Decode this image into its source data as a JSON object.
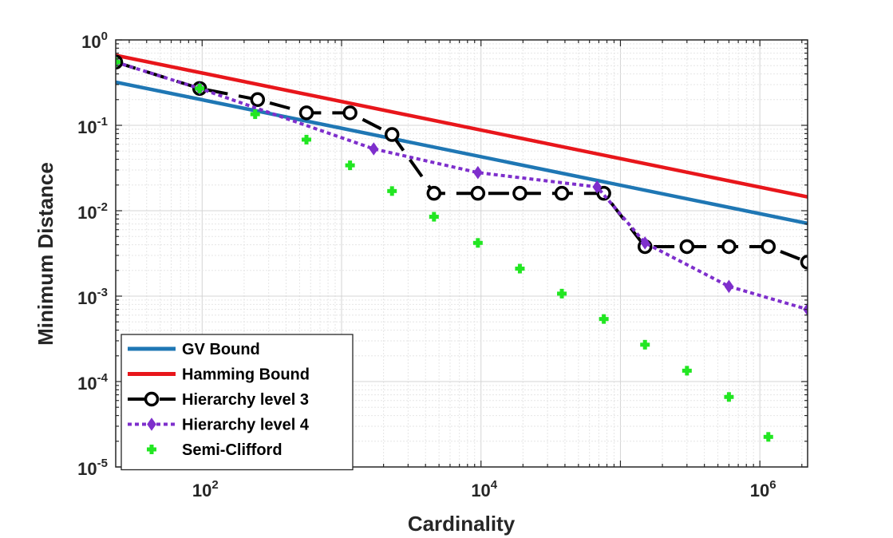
{
  "chart_data": {
    "type": "line",
    "title": "",
    "xlabel": "Cardinality",
    "ylabel": "Minimum Distance",
    "xscale": "log",
    "yscale": "log",
    "xlim": [
      24,
      2200000
    ],
    "ylim": [
      1e-05,
      1
    ],
    "grid": true,
    "legend_position": "bottom-left",
    "x_ticks": [
      {
        "value": 100,
        "base": "10",
        "exp": "2"
      },
      {
        "value": 10000,
        "base": "10",
        "exp": "4"
      },
      {
        "value": 1000000,
        "base": "10",
        "exp": "6"
      }
    ],
    "y_ticks": [
      {
        "value": 1,
        "base": "10",
        "exp": "0"
      },
      {
        "value": 0.1,
        "base": "10",
        "exp": "-1"
      },
      {
        "value": 0.01,
        "base": "10",
        "exp": "-2"
      },
      {
        "value": 0.001,
        "base": "10",
        "exp": "-3"
      },
      {
        "value": 0.0001,
        "base": "10",
        "exp": "-4"
      },
      {
        "value": 1e-05,
        "base": "10",
        "exp": "-5"
      }
    ],
    "series": [
      {
        "name": "GV Bound",
        "color": "#1f77b4",
        "style": "solid",
        "x": [
          24,
          2200000
        ],
        "y": [
          0.32,
          0.0071
        ]
      },
      {
        "name": "Hamming Bound",
        "color": "#e8161b",
        "style": "solid",
        "x": [
          24,
          2200000
        ],
        "y": [
          0.66,
          0.0145
        ]
      },
      {
        "name": "Hierarchy level 3",
        "color": "#000000",
        "style": "dashed",
        "marker": "circle",
        "x": [
          24,
          96,
          250,
          560,
          1150,
          2300,
          4600,
          9500,
          19000,
          38000,
          76000,
          150000,
          300000,
          600000,
          1150000,
          2200000
        ],
        "y": [
          0.55,
          0.27,
          0.2,
          0.14,
          0.14,
          0.078,
          0.016,
          0.016,
          0.016,
          0.016,
          0.016,
          0.0038,
          0.0038,
          0.0038,
          0.0038,
          0.0025
        ]
      },
      {
        "name": "Hierarchy level 4",
        "color": "#7e2fcc",
        "style": "dotted",
        "marker": "diamond",
        "x": [
          24,
          96,
          1700,
          9500,
          68000,
          150000,
          600000,
          2200000
        ],
        "y": [
          0.55,
          0.27,
          0.053,
          0.028,
          0.019,
          0.0042,
          0.0013,
          0.0007
        ]
      },
      {
        "name": "Semi-Clifford",
        "color": "#22e622",
        "style": "none",
        "marker": "plus",
        "x": [
          24,
          96,
          240,
          560,
          1150,
          2300,
          4600,
          9500,
          19000,
          38000,
          76000,
          150000,
          300000,
          600000,
          1150000
        ],
        "y": [
          0.55,
          0.27,
          0.135,
          0.068,
          0.034,
          0.017,
          0.0085,
          0.0042,
          0.0021,
          0.00107,
          0.00054,
          0.00027,
          0.000134,
          6.6e-05,
          2.25e-05
        ]
      }
    ]
  }
}
